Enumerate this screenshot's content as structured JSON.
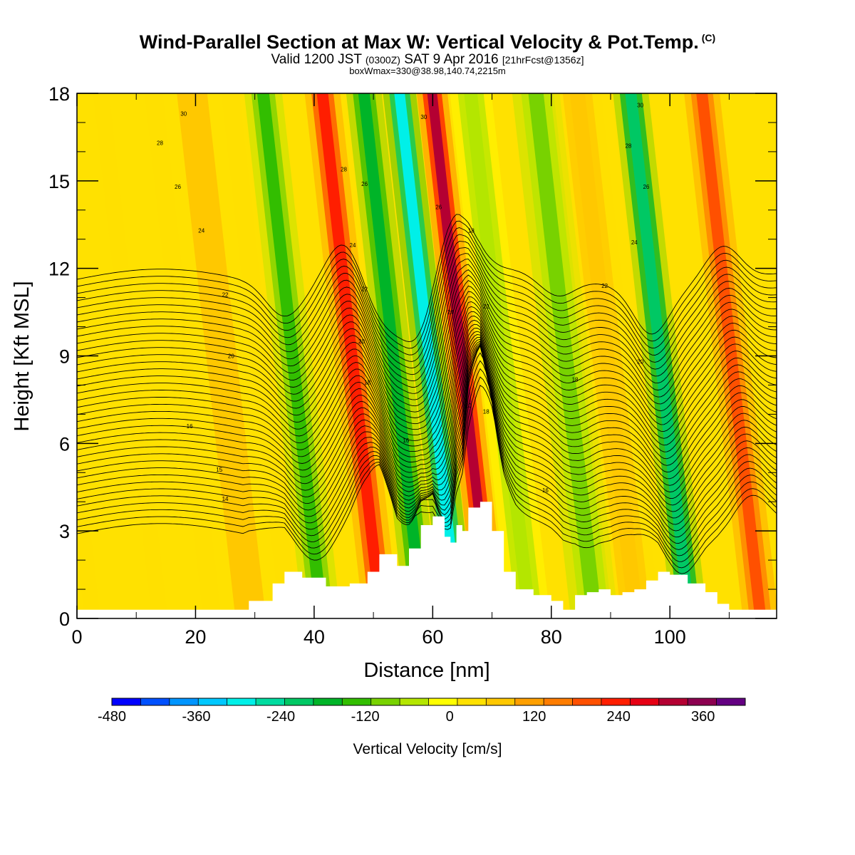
{
  "title": {
    "main": "Wind-Parallel Section at Max W: Vertical Velocity & Pot.Temp.",
    "copyright": "(C)",
    "valid_a": "Valid 1200 JST",
    "valid_zulu": "(0300Z)",
    "valid_b": "SAT 9 Apr 2016",
    "forecast": "[21hrFcst@1356z]",
    "boxinfo": "boxWmax=330@38.98,140.74,2215m"
  },
  "chart_data": {
    "type": "heatmap",
    "xlabel": "Distance [nm]",
    "ylabel": "Height [Kft MSL]",
    "xlim": [
      0,
      118
    ],
    "ylim": [
      0,
      18
    ],
    "x_ticks": [
      0,
      20,
      40,
      60,
      80,
      100
    ],
    "y_ticks": [
      0,
      3,
      6,
      9,
      12,
      15,
      18
    ],
    "colorbar": {
      "label": "Vertical Velocity [cm/s]",
      "min": -480,
      "max": 420,
      "step": 40,
      "tick_values": [
        -480,
        -360,
        -240,
        -120,
        0,
        120,
        240,
        360
      ],
      "tick_labels": [
        "-480",
        "-360",
        "-240",
        "-120",
        "0",
        "120",
        "240",
        "360"
      ],
      "colors": [
        "#0000ff",
        "#0050ff",
        "#0095ff",
        "#00c8ff",
        "#00f0e8",
        "#00dca0",
        "#00c864",
        "#00b428",
        "#32be00",
        "#78d200",
        "#b4e600",
        "#ffff00",
        "#ffe100",
        "#ffc800",
        "#ffa000",
        "#ff7d00",
        "#ff5000",
        "#ff1e00",
        "#e60014",
        "#b40032",
        "#8c0050",
        "#640082"
      ]
    },
    "terrain": {
      "x": [
        0,
        28,
        29,
        33,
        35,
        38,
        42,
        46,
        49,
        51,
        54,
        56,
        58,
        60,
        62,
        63,
        64,
        65,
        66,
        68,
        70,
        72,
        74,
        77,
        80,
        82,
        84,
        86,
        88,
        90,
        92,
        94,
        96,
        98,
        100,
        103,
        106,
        108,
        110,
        114,
        118
      ],
      "height": [
        0.3,
        0.3,
        0.6,
        1.2,
        1.6,
        1.4,
        1.1,
        1.2,
        1.6,
        2.2,
        1.8,
        2.4,
        3.2,
        3.5,
        2.8,
        2.6,
        3.2,
        3.0,
        3.8,
        4.0,
        3.0,
        1.6,
        1.0,
        0.8,
        0.6,
        0.3,
        0.8,
        0.9,
        1.0,
        0.8,
        0.9,
        1.0,
        1.3,
        1.6,
        1.5,
        1.2,
        0.9,
        0.5,
        0.3,
        0.3,
        0.4
      ]
    },
    "velocity_bands": [
      {
        "x": 5,
        "width": 7,
        "value": 20
      },
      {
        "x": 26,
        "width": 8,
        "value": 40
      },
      {
        "x": 38,
        "width": 3.2,
        "value": -150
      },
      {
        "x": 48,
        "width": 3,
        "value": 220
      },
      {
        "x": 55,
        "width": 3,
        "value": -180
      },
      {
        "x": 61,
        "width": 2.8,
        "value": -310
      },
      {
        "x": 66.5,
        "width": 2.6,
        "value": 300
      },
      {
        "x": 73,
        "width": 3.5,
        "value": -60
      },
      {
        "x": 84,
        "width": 4,
        "value": -100
      },
      {
        "x": 91,
        "width": 4,
        "value": 60
      },
      {
        "x": 100,
        "width": 3,
        "value": -220
      },
      {
        "x": 112,
        "width": 3,
        "value": 180
      }
    ],
    "isentropes": {
      "levels": [
        12,
        12.5,
        13,
        13.5,
        14,
        14.5,
        15,
        15.5,
        16,
        16.5,
        17,
        17.5,
        18,
        18.5,
        19,
        19.5,
        20,
        20.5,
        21,
        21.5,
        22,
        22.5,
        23,
        23.5,
        24,
        24.5,
        25,
        25.5,
        26,
        26.5,
        27,
        27.5,
        28,
        28.5,
        29,
        29.5,
        30
      ],
      "contour_labels": [
        {
          "text": "30",
          "x": 18,
          "y": 17.3
        },
        {
          "text": "28",
          "x": 14,
          "y": 16.3
        },
        {
          "text": "26",
          "x": 17,
          "y": 14.8
        },
        {
          "text": "24",
          "x": 21,
          "y": 13.3
        },
        {
          "text": "22",
          "x": 25,
          "y": 11.1
        },
        {
          "text": "20",
          "x": 26,
          "y": 9.0
        },
        {
          "text": "16",
          "x": 19,
          "y": 6.6
        },
        {
          "text": "15",
          "x": 24,
          "y": 5.1
        },
        {
          "text": "14",
          "x": 25,
          "y": 4.1
        },
        {
          "text": "28",
          "x": 45,
          "y": 15.4
        },
        {
          "text": "26",
          "x": 48.5,
          "y": 14.9
        },
        {
          "text": "24",
          "x": 46.5,
          "y": 12.8
        },
        {
          "text": "22",
          "x": 48.5,
          "y": 11.3
        },
        {
          "text": "20",
          "x": 48,
          "y": 9.5
        },
        {
          "text": "18",
          "x": 49,
          "y": 8.1
        },
        {
          "text": "16",
          "x": 55.5,
          "y": 6.1
        },
        {
          "text": "30",
          "x": 58.5,
          "y": 17.2
        },
        {
          "text": "26",
          "x": 61,
          "y": 14.1
        },
        {
          "text": "24",
          "x": 63,
          "y": 10.5
        },
        {
          "text": "18",
          "x": 66.5,
          "y": 13.3
        },
        {
          "text": "22",
          "x": 69,
          "y": 10.7
        },
        {
          "text": "20",
          "x": 66,
          "y": 7.3
        },
        {
          "text": "18",
          "x": 69,
          "y": 7.1
        },
        {
          "text": "30",
          "x": 95,
          "y": 17.6
        },
        {
          "text": "28",
          "x": 93,
          "y": 16.2
        },
        {
          "text": "26",
          "x": 96,
          "y": 14.8
        },
        {
          "text": "24",
          "x": 94,
          "y": 12.9
        },
        {
          "text": "22",
          "x": 89,
          "y": 11.4
        },
        {
          "text": "20",
          "x": 95,
          "y": 8.8
        },
        {
          "text": "18",
          "x": 84,
          "y": 8.2
        },
        {
          "text": "16",
          "x": 79,
          "y": 4.4
        }
      ]
    }
  }
}
